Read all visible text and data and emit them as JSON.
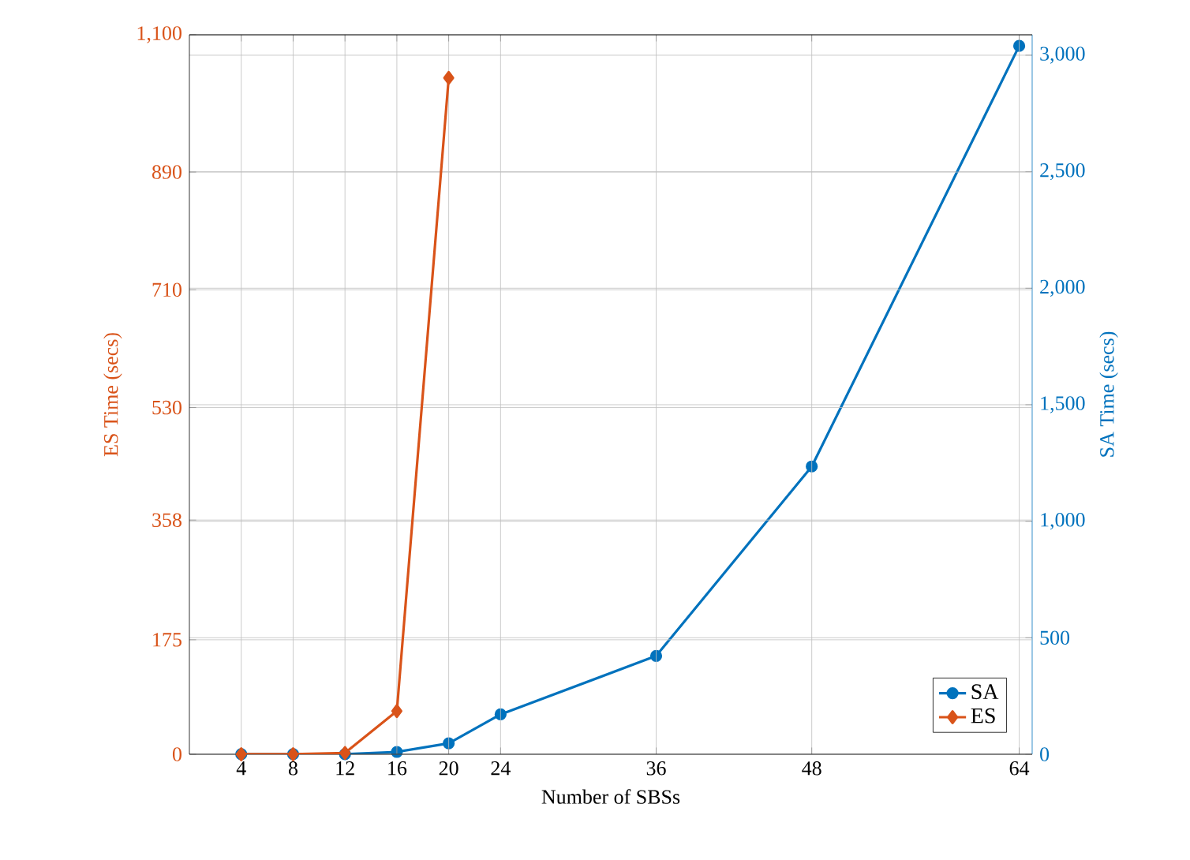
{
  "chart_data": {
    "type": "line",
    "xlabel": "Number of SBSs",
    "ylabel": "ES Time (secs)",
    "y2label": "SA Time (secs)",
    "xlim": [
      0,
      65
    ],
    "xticks": [
      4,
      8,
      12,
      16,
      20,
      24,
      36,
      48,
      64
    ],
    "ylim": [
      0,
      1100
    ],
    "yticks": [
      0,
      175,
      358,
      530,
      710,
      890,
      {
        "value": 1100,
        "label": "1,100"
      }
    ],
    "y2lim": [
      0,
      3088
    ],
    "y2ticks": [
      0,
      500,
      {
        "value": 1000,
        "label": "1,000"
      },
      {
        "value": 1500,
        "label": "1,500"
      },
      {
        "value": 2000,
        "label": "2,000"
      },
      {
        "value": 2500,
        "label": "2,500"
      },
      {
        "value": 3000,
        "label": "3,000"
      }
    ],
    "grid": true,
    "legend": "bottom right",
    "line_style": "solid",
    "series": [
      {
        "name": "SA",
        "color": "#0072bd",
        "axis": "y2",
        "marker": "circle",
        "x": [
          4,
          8,
          12,
          16,
          20,
          24,
          36,
          48,
          64
        ],
        "values": [
          0,
          0,
          0,
          10,
          47,
          171,
          422,
          1235,
          3040
        ]
      },
      {
        "name": "ES",
        "color": "#d95319",
        "axis": "y",
        "marker": "diamond",
        "x": [
          4,
          8,
          12,
          16,
          20
        ],
        "values": [
          0,
          0,
          2,
          66,
          1034
        ]
      }
    ]
  }
}
